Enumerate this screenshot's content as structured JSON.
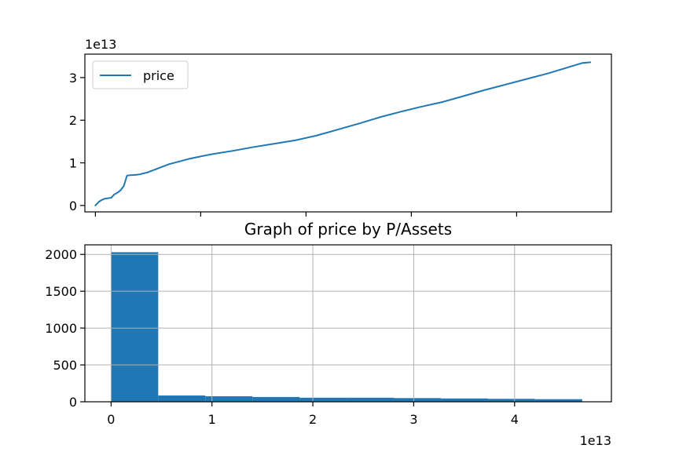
{
  "colors": {
    "series": "#1f77b4",
    "grid": "#b0b0b0",
    "axes": "#000000",
    "background": "#ffffff"
  },
  "chart_data": [
    {
      "type": "line",
      "title": "",
      "xlabel": "",
      "ylabel": "",
      "y_offset_text": "1e13",
      "xlim": [
        -1000,
        49000
      ],
      "ylim": [
        -1500000000000.0,
        35500000000000.0
      ],
      "yticks": [
        0,
        10000000000000.0,
        20000000000000.0,
        30000000000000.0
      ],
      "ytick_labels": [
        "0",
        "1",
        "2",
        "3"
      ],
      "xticks": [
        0,
        10000,
        20000,
        30000,
        40000
      ],
      "xtick_labels_visible": false,
      "grid": false,
      "legend": {
        "placement": "upper-left",
        "entries": [
          "price"
        ]
      },
      "series": [
        {
          "name": "price",
          "x": [
            0,
            300,
            600,
            900,
            1200,
            1500,
            1800,
            2100,
            2400,
            2700,
            3000,
            3300,
            3600,
            3900,
            4200,
            5000,
            7000,
            9000,
            11000,
            13000,
            15000,
            17000,
            19000,
            21000,
            23000,
            25000,
            27000,
            29000,
            31000,
            33000,
            35000,
            37000,
            39000,
            41000,
            43000,
            45000,
            46200,
            47000
          ],
          "y": [
            0,
            800000000000.0,
            1300000000000.0,
            1600000000000.0,
            1700000000000.0,
            1800000000000.0,
            2600000000000.0,
            3000000000000.0,
            3600000000000.0,
            4600000000000.0,
            7000000000000.0,
            7100000000000.0,
            7150000000000.0,
            7200000000000.0,
            7300000000000.0,
            7800000000000.0,
            9700000000000.0,
            11000000000000.0,
            12000000000000.0,
            12800000000000.0,
            13700000000000.0,
            14500000000000.0,
            15300000000000.0,
            16400000000000.0,
            17800000000000.0,
            19200000000000.0,
            20700000000000.0,
            22000000000000.0,
            23200000000000.0,
            24300000000000.0,
            25700000000000.0,
            27100000000000.0,
            28400000000000.0,
            29700000000000.0,
            31000000000000.0,
            32500000000000.0,
            33400000000000.0,
            33600000000000.0
          ]
        }
      ]
    },
    {
      "type": "bar",
      "title": "Graph of price by P/Assets",
      "xlabel": "",
      "ylabel": "",
      "x_offset_text": "1e13",
      "xlim": [
        -2600000000000.0,
        49600000000000.0
      ],
      "ylim": [
        0,
        2130
      ],
      "xticks": [
        0,
        10000000000000.0,
        20000000000000.0,
        30000000000000.0,
        40000000000000.0
      ],
      "xtick_labels": [
        "0",
        "1",
        "2",
        "3",
        "4"
      ],
      "yticks": [
        0,
        500,
        1000,
        1500,
        2000
      ],
      "ytick_labels": [
        "0",
        "500",
        "1000",
        "1500",
        "2000"
      ],
      "grid": true,
      "bin_edges": [
        0,
        4670000000000.0,
        9340000000000.0,
        14010000000000.0,
        18680000000000.0,
        23350000000000.0,
        28020000000000.0,
        32690000000000.0,
        37360000000000.0,
        42030000000000.0,
        46700000000000.0
      ],
      "values": [
        2030,
        85,
        75,
        65,
        55,
        55,
        50,
        45,
        40,
        35
      ]
    }
  ]
}
